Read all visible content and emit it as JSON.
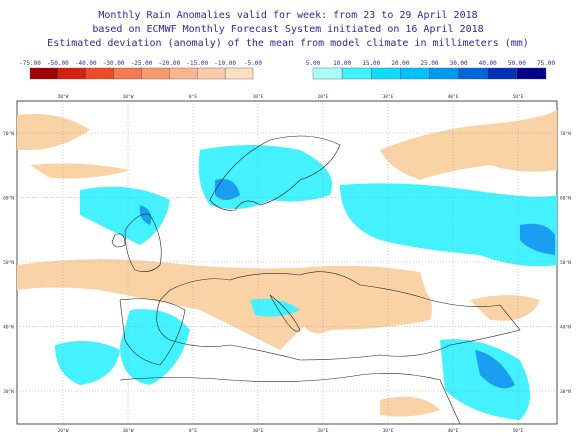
{
  "header": {
    "lines": [
      "Monthly Rain Anomalies valid for week: from 23 to 29 April 2018",
      "based on ECMWF Monthly Forecast System initiated on 16 April 2018",
      "Estimated deviation (anomaly) of the mean from model climate in millimeters (mm)"
    ]
  },
  "legend": {
    "negative": {
      "labels": [
        "-75.00",
        "-50.00",
        "-40.00",
        "-30.00",
        "-25.00",
        "-20.00",
        "-15.00",
        "-10.00",
        "-5.00"
      ],
      "colors": [
        "#a00000",
        "#d42010",
        "#ee4b2b",
        "#f57a50",
        "#f89a70",
        "#fab68e",
        "#fccba8",
        "#fddfc0"
      ]
    },
    "positive": {
      "labels": [
        "5.00",
        "10.00",
        "15.00",
        "20.00",
        "25.00",
        "30.00",
        "40.00",
        "50.00",
        "75.00"
      ],
      "colors": [
        "#aaffff",
        "#3cf3ff",
        "#10dcff",
        "#00c2ff",
        "#0099f0",
        "#0066dd",
        "#0030b8",
        "#000088"
      ]
    }
  },
  "map": {
    "lon_labels": [
      "20°W",
      "10°W",
      "0°E",
      "10°E",
      "20°E",
      "30°E",
      "40°E",
      "50°E"
    ],
    "lat_labels": [
      "70°N",
      "60°N",
      "50°N",
      "40°N",
      "30°N"
    ]
  }
}
